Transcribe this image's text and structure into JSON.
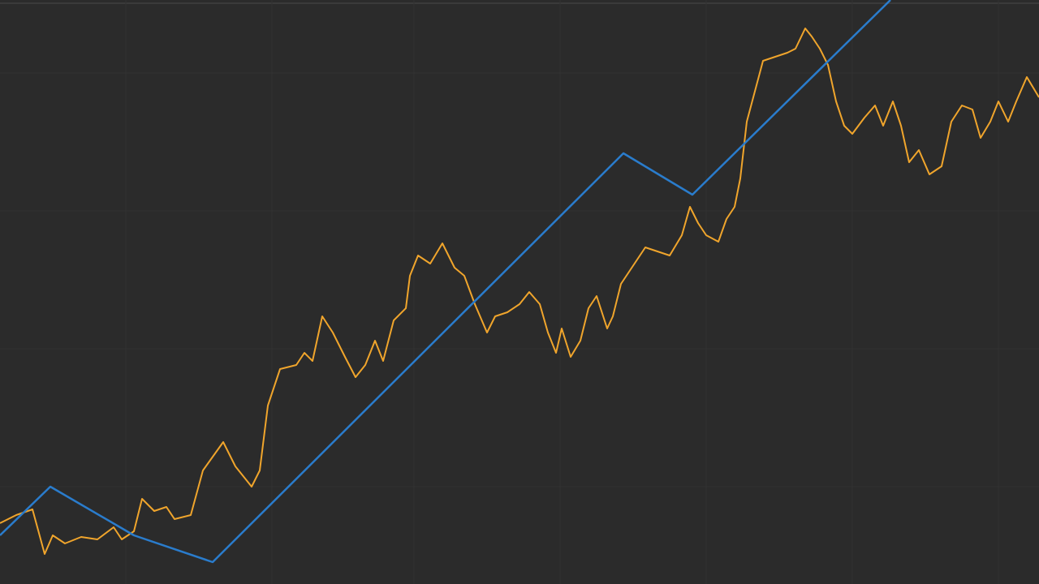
{
  "chart_data": {
    "type": "line",
    "xlim": [
      0,
      1280
    ],
    "ylim": [
      0,
      720
    ],
    "xticks": [
      155,
      335,
      510,
      690,
      870,
      1050,
      1230
    ],
    "yticks": [
      120,
      290,
      460,
      630
    ],
    "grid": true,
    "background": "#2b2b2b",
    "series": [
      {
        "color": "#f0a52c",
        "x": [
          0,
          20,
          40,
          55,
          65,
          80,
          100,
          120,
          140,
          150,
          165,
          175,
          190,
          205,
          215,
          235,
          250,
          275,
          290,
          310,
          320,
          330,
          345,
          365,
          375,
          385,
          397,
          410,
          425,
          438,
          450,
          462,
          472,
          485,
          500,
          505,
          515,
          530,
          545,
          560,
          572,
          585,
          600,
          610,
          625,
          640,
          652,
          665,
          675,
          685,
          692,
          703,
          715,
          725,
          735,
          748,
          755,
          765,
          785,
          795,
          810,
          825,
          840,
          850,
          860,
          870,
          885,
          895,
          905,
          912,
          920,
          932,
          940,
          955,
          970,
          980,
          992,
          1000,
          1010,
          1020,
          1030,
          1040,
          1050,
          1065,
          1078,
          1088,
          1100,
          1110,
          1120,
          1132,
          1145,
          1160,
          1172,
          1185,
          1198,
          1208,
          1220,
          1230,
          1242,
          1252,
          1265,
          1280
        ],
        "values": [
          75,
          85,
          92,
          37,
          60,
          50,
          58,
          55,
          70,
          55,
          65,
          105,
          90,
          95,
          80,
          85,
          140,
          175,
          145,
          120,
          140,
          220,
          265,
          270,
          285,
          275,
          330,
          310,
          280,
          255,
          270,
          300,
          275,
          325,
          340,
          380,
          405,
          395,
          420,
          390,
          380,
          345,
          310,
          330,
          335,
          345,
          360,
          345,
          310,
          285,
          315,
          280,
          300,
          340,
          355,
          315,
          330,
          370,
          400,
          415,
          410,
          405,
          430,
          465,
          445,
          430,
          422,
          450,
          465,
          500,
          570,
          615,
          645,
          650,
          655,
          660,
          685,
          675,
          660,
          640,
          595,
          565,
          555,
          575,
          590,
          565,
          595,
          565,
          520,
          535,
          505,
          515,
          570,
          590,
          585,
          550,
          570,
          595,
          570,
          595,
          625,
          600
        ]
      },
      {
        "color": "#2a7ccc",
        "x": [
          0,
          62,
          165,
          262,
          768,
          853,
          1097
        ],
        "values": [
          60,
          120,
          60,
          27,
          531,
          480,
          720
        ]
      }
    ]
  }
}
